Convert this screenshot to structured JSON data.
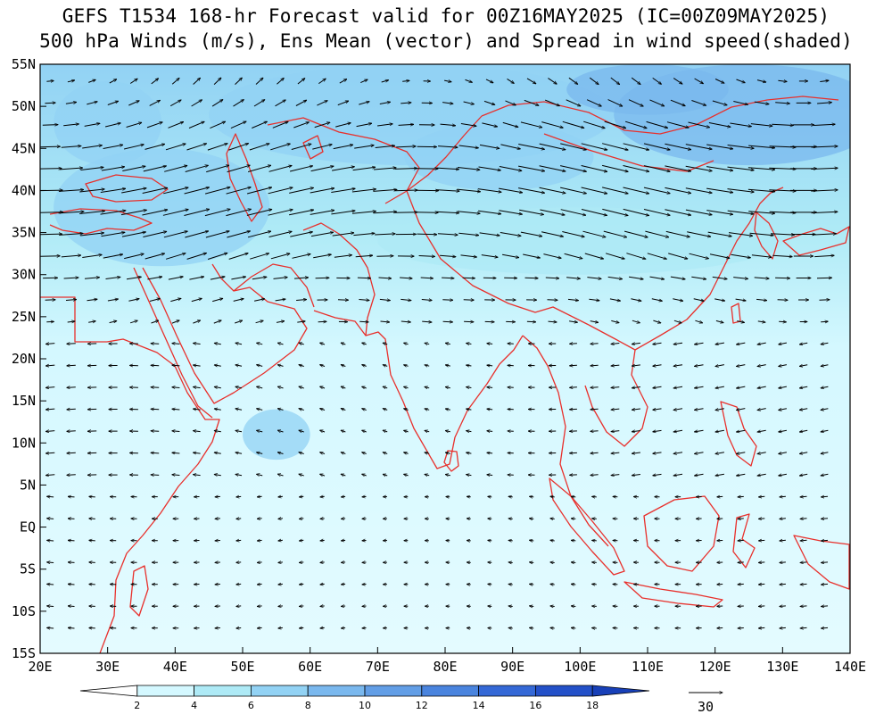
{
  "title_line1": "GEFS T1534 168-hr Forecast valid for 00Z16MAY2025 (IC=00Z09MAY2025)",
  "title_line2": "500 hPa Winds (m/s), Ens Mean (vector) and Spread in wind speed(shaded)",
  "map": {
    "lon_range": [
      20,
      140
    ],
    "lat_range": [
      -15,
      55
    ],
    "lon_ticks": [
      {
        "v": 20,
        "label": "20E"
      },
      {
        "v": 30,
        "label": "30E"
      },
      {
        "v": 40,
        "label": "40E"
      },
      {
        "v": 50,
        "label": "50E"
      },
      {
        "v": 60,
        "label": "60E"
      },
      {
        "v": 70,
        "label": "70E"
      },
      {
        "v": 80,
        "label": "80E"
      },
      {
        "v": 90,
        "label": "90E"
      },
      {
        "v": 100,
        "label": "100E"
      },
      {
        "v": 110,
        "label": "110E"
      },
      {
        "v": 120,
        "label": "120E"
      },
      {
        "v": 130,
        "label": "130E"
      },
      {
        "v": 140,
        "label": "140E"
      }
    ],
    "lat_ticks": [
      {
        "v": 55,
        "label": "55N"
      },
      {
        "v": 50,
        "label": "50N"
      },
      {
        "v": 45,
        "label": "45N"
      },
      {
        "v": 40,
        "label": "40N"
      },
      {
        "v": 35,
        "label": "35N"
      },
      {
        "v": 30,
        "label": "30N"
      },
      {
        "v": 25,
        "label": "25N"
      },
      {
        "v": 20,
        "label": "20N"
      },
      {
        "v": 15,
        "label": "15N"
      },
      {
        "v": 10,
        "label": "10N"
      },
      {
        "v": 5,
        "label": "5N"
      },
      {
        "v": 0,
        "label": "EQ"
      },
      {
        "v": -5,
        "label": "5S"
      },
      {
        "v": -10,
        "label": "10S"
      },
      {
        "v": -15,
        "label": "15S"
      }
    ],
    "coastline_color": "#e8302c"
  },
  "colorbar": {
    "levels": [
      "2",
      "4",
      "6",
      "8",
      "10",
      "12",
      "14",
      "16",
      "18"
    ],
    "colors": [
      "#ffffff",
      "#d4f8ff",
      "#aeeaf6",
      "#92d2f4",
      "#7ab8ee",
      "#629ee6",
      "#4a84de",
      "#3468d6",
      "#2350c8",
      "#1840b8"
    ]
  },
  "vector_reference": {
    "label": "30",
    "units": "m/s"
  },
  "shading_regions": [
    {
      "lon": 75,
      "lat": 49,
      "rlon": 30,
      "rlat": 6,
      "level": 3
    },
    {
      "lon": 125,
      "lat": 49,
      "rlon": 20,
      "rlat": 6,
      "level": 4
    },
    {
      "lon": 38,
      "lat": 38,
      "rlon": 16,
      "rlat": 7,
      "level": 3
    },
    {
      "lon": 100,
      "lat": 34,
      "rlon": 30,
      "rlat": 4,
      "level": 2
    },
    {
      "lon": 88,
      "lat": 44,
      "rlon": 14,
      "rlat": 4,
      "level": 3
    },
    {
      "lon": 55,
      "lat": 11,
      "rlon": 5,
      "rlat": 3,
      "level": 3
    },
    {
      "lon": 110,
      "lat": 52,
      "rlon": 12,
      "rlat": 3,
      "level": 4
    },
    {
      "lon": 30,
      "lat": 48,
      "rlon": 8,
      "rlat": 5,
      "level": 3
    }
  ]
}
